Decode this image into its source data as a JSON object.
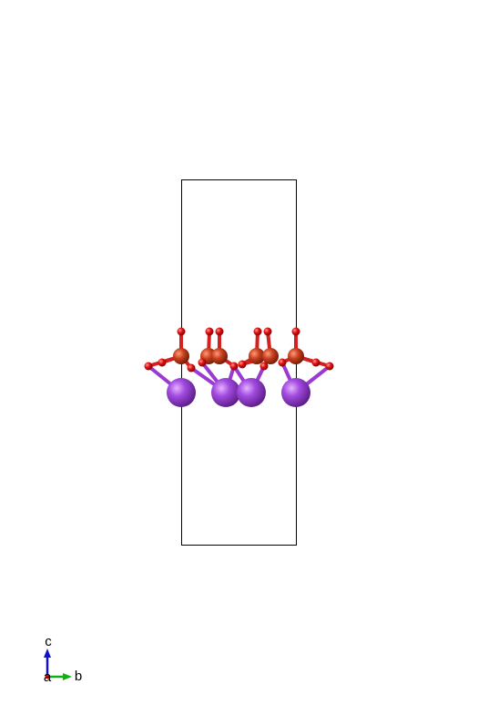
{
  "axes": {
    "c": "c",
    "a": "a",
    "b": "b"
  }
}
